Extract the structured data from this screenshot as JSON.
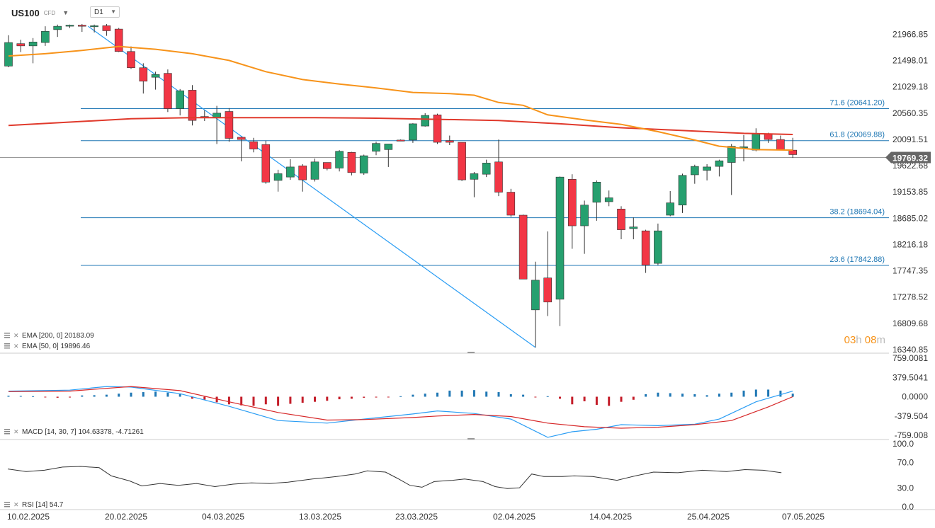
{
  "header": {
    "symbol": "US100",
    "instrument_type": "CFD",
    "timeframe": "D1",
    "symbol_dropdown_icon": "chevron-down-icon",
    "timeframe_dropdown_icon": "chevron-down-icon"
  },
  "countdown": {
    "hours": "03",
    "hours_unit": "h",
    "minutes": "08",
    "minutes_unit": "m"
  },
  "colors": {
    "bull": "#26a06f",
    "bear": "#f23645",
    "ema50": "#f7931a",
    "ema200": "#e0392b",
    "fib": "#1f77b4",
    "trend": "#2a9df4",
    "macd_line": "#2a9df4",
    "signal_line": "#d62728",
    "hist_pos": "#1f77b4",
    "hist_neg": "#c41e2a",
    "rsi": "#333333",
    "countdown": "#f7931a"
  },
  "chart_data": {
    "type": "candlestick",
    "x_labels": [
      "10.02.2025",
      "20.02.2025",
      "04.03.2025",
      "13.03.2025",
      "23.03.2025",
      "02.04.2025",
      "14.04.2025",
      "25.04.2025",
      "07.05.2025"
    ],
    "price_axis": {
      "ticks": [
        "21966.85",
        "21498.01",
        "21029.18",
        "20560.35",
        "20091.51",
        "19622.68",
        "19153.85",
        "18685.02",
        "18216.18",
        "17747.35",
        "17278.52",
        "16809.68",
        "16340.85"
      ],
      "range": [
        16340.85,
        22200
      ]
    },
    "current_price": "19769.32",
    "candles": [
      {
        "o": 21400,
        "h": 21950,
        "l": 21380,
        "c": 21820
      },
      {
        "o": 21800,
        "h": 21870,
        "l": 21650,
        "c": 21760
      },
      {
        "o": 21760,
        "h": 21900,
        "l": 21450,
        "c": 21830
      },
      {
        "o": 21820,
        "h": 22110,
        "l": 21760,
        "c": 22020
      },
      {
        "o": 22050,
        "h": 22140,
        "l": 21920,
        "c": 22110
      },
      {
        "o": 22120,
        "h": 22140,
        "l": 22080,
        "c": 22130
      },
      {
        "o": 22130,
        "h": 22150,
        "l": 22010,
        "c": 22110
      },
      {
        "o": 22120,
        "h": 22140,
        "l": 22000,
        "c": 22120
      },
      {
        "o": 22120,
        "h": 22150,
        "l": 21940,
        "c": 22030
      },
      {
        "o": 22060,
        "h": 22080,
        "l": 21650,
        "c": 21660
      },
      {
        "o": 21660,
        "h": 21750,
        "l": 21350,
        "c": 21370
      },
      {
        "o": 21370,
        "h": 21450,
        "l": 20910,
        "c": 21130
      },
      {
        "o": 21200,
        "h": 21300,
        "l": 20980,
        "c": 21250
      },
      {
        "o": 21270,
        "h": 21340,
        "l": 20580,
        "c": 20640
      },
      {
        "o": 20640,
        "h": 20990,
        "l": 20520,
        "c": 20960
      },
      {
        "o": 20970,
        "h": 21060,
        "l": 20340,
        "c": 20430
      },
      {
        "o": 20500,
        "h": 20610,
        "l": 20420,
        "c": 20490
      },
      {
        "o": 20480,
        "h": 20690,
        "l": 20010,
        "c": 20560
      },
      {
        "o": 20590,
        "h": 20650,
        "l": 20050,
        "c": 20110
      },
      {
        "o": 20130,
        "h": 20140,
        "l": 19700,
        "c": 20090
      },
      {
        "o": 20050,
        "h": 20120,
        "l": 19860,
        "c": 19920
      },
      {
        "o": 20000,
        "h": 20070,
        "l": 19300,
        "c": 19330
      },
      {
        "o": 19360,
        "h": 19550,
        "l": 19160,
        "c": 19480
      },
      {
        "o": 19420,
        "h": 19740,
        "l": 19370,
        "c": 19600
      },
      {
        "o": 19620,
        "h": 19650,
        "l": 19160,
        "c": 19370
      },
      {
        "o": 19380,
        "h": 19750,
        "l": 19340,
        "c": 19690
      },
      {
        "o": 19680,
        "h": 19680,
        "l": 19540,
        "c": 19570
      },
      {
        "o": 19580,
        "h": 19900,
        "l": 19520,
        "c": 19880
      },
      {
        "o": 19860,
        "h": 19870,
        "l": 19450,
        "c": 19500
      },
      {
        "o": 19490,
        "h": 19820,
        "l": 19460,
        "c": 19800
      },
      {
        "o": 19880,
        "h": 20050,
        "l": 19810,
        "c": 20020
      },
      {
        "o": 19910,
        "h": 20010,
        "l": 19600,
        "c": 20010
      },
      {
        "o": 20080,
        "h": 20090,
        "l": 20060,
        "c": 20070
      },
      {
        "o": 20080,
        "h": 20380,
        "l": 20030,
        "c": 20370
      },
      {
        "o": 20330,
        "h": 20560,
        "l": 20320,
        "c": 20520
      },
      {
        "o": 20530,
        "h": 20550,
        "l": 20010,
        "c": 20040
      },
      {
        "o": 20070,
        "h": 20160,
        "l": 19990,
        "c": 20040
      },
      {
        "o": 20040,
        "h": 20040,
        "l": 19350,
        "c": 19370
      },
      {
        "o": 19380,
        "h": 19510,
        "l": 19060,
        "c": 19480
      },
      {
        "o": 19470,
        "h": 19730,
        "l": 19420,
        "c": 19670
      },
      {
        "o": 19690,
        "h": 20090,
        "l": 19080,
        "c": 19150
      },
      {
        "o": 19150,
        "h": 19210,
        "l": 18710,
        "c": 18740
      },
      {
        "o": 18740,
        "h": 18750,
        "l": 17600,
        "c": 17600
      },
      {
        "o": 17050,
        "h": 17910,
        "l": 16380,
        "c": 17580
      },
      {
        "o": 17620,
        "h": 18450,
        "l": 16940,
        "c": 17190
      },
      {
        "o": 17240,
        "h": 19430,
        "l": 16760,
        "c": 19420
      },
      {
        "o": 19380,
        "h": 19470,
        "l": 18140,
        "c": 18550
      },
      {
        "o": 18550,
        "h": 19000,
        "l": 18050,
        "c": 18920
      },
      {
        "o": 18970,
        "h": 19360,
        "l": 18640,
        "c": 19330
      },
      {
        "o": 18980,
        "h": 19180,
        "l": 18900,
        "c": 19050
      },
      {
        "o": 18850,
        "h": 18900,
        "l": 18310,
        "c": 18480
      },
      {
        "o": 18500,
        "h": 18700,
        "l": 18310,
        "c": 18530
      },
      {
        "o": 18460,
        "h": 18480,
        "l": 17710,
        "c": 17850
      },
      {
        "o": 17880,
        "h": 18590,
        "l": 17850,
        "c": 18460
      },
      {
        "o": 18740,
        "h": 19170,
        "l": 18720,
        "c": 18960
      },
      {
        "o": 18920,
        "h": 19480,
        "l": 18780,
        "c": 19450
      },
      {
        "o": 19460,
        "h": 19640,
        "l": 19300,
        "c": 19610
      },
      {
        "o": 19540,
        "h": 19650,
        "l": 19360,
        "c": 19600
      },
      {
        "o": 19610,
        "h": 19730,
        "l": 19430,
        "c": 19710
      },
      {
        "o": 19680,
        "h": 20010,
        "l": 19100,
        "c": 19970
      },
      {
        "o": 19960,
        "h": 20170,
        "l": 19700,
        "c": 19960
      },
      {
        "o": 19900,
        "h": 20290,
        "l": 19880,
        "c": 20200
      },
      {
        "o": 20190,
        "h": 20210,
        "l": 20030,
        "c": 20090
      },
      {
        "o": 20090,
        "h": 20160,
        "l": 19900,
        "c": 19910
      },
      {
        "o": 19900,
        "h": 20120,
        "l": 19760,
        "c": 19820
      }
    ],
    "ema200": {
      "label": "EMA [200, 0]",
      "value": "20183.09",
      "points": [
        [
          0,
          20340
        ],
        [
          5,
          20400
        ],
        [
          10,
          20460
        ],
        [
          15,
          20480
        ],
        [
          20,
          20480
        ],
        [
          25,
          20480
        ],
        [
          30,
          20470
        ],
        [
          35,
          20450
        ],
        [
          40,
          20430
        ],
        [
          45,
          20370
        ],
        [
          50,
          20300
        ],
        [
          55,
          20250
        ],
        [
          60,
          20200
        ],
        [
          64,
          20180
        ]
      ]
    },
    "ema50": {
      "label": "EMA [50, 0]",
      "value": "19896.46",
      "points": [
        [
          0,
          21580
        ],
        [
          3,
          21620
        ],
        [
          6,
          21680
        ],
        [
          9,
          21750
        ],
        [
          12,
          21700
        ],
        [
          15,
          21620
        ],
        [
          18,
          21500
        ],
        [
          21,
          21300
        ],
        [
          24,
          21160
        ],
        [
          27,
          21080
        ],
        [
          30,
          21010
        ],
        [
          33,
          20930
        ],
        [
          36,
          20910
        ],
        [
          38,
          20880
        ],
        [
          40,
          20750
        ],
        [
          42,
          20700
        ],
        [
          44,
          20530
        ],
        [
          47,
          20440
        ],
        [
          50,
          20360
        ],
        [
          53,
          20230
        ],
        [
          56,
          20080
        ],
        [
          58,
          19970
        ],
        [
          61,
          19910
        ],
        [
          64,
          19900
        ]
      ]
    },
    "trendline": [
      [
        6.5,
        22110
      ],
      [
        43,
        16380
      ]
    ],
    "fibonacci": [
      {
        "label": "71.6",
        "value": "20641.20"
      },
      {
        "label": "61.8",
        "value": "20069.88"
      },
      {
        "label": "38.2",
        "value": "18694.04"
      },
      {
        "label": "23.6",
        "value": "17842.88"
      }
    ],
    "macd": {
      "label": "MACD [14, 30, 7]",
      "macd_value": "104.63378",
      "signal_value": "-4.71261",
      "axis_ticks": [
        "759.0081",
        "379.5041",
        "0.0000",
        "-379.504",
        "-759.008"
      ],
      "range": [
        -759.008,
        759.0081
      ],
      "histogram": [
        20,
        15,
        10,
        -10,
        -20,
        -15,
        25,
        30,
        40,
        60,
        80,
        90,
        100,
        80,
        50,
        -40,
        -60,
        -110,
        -150,
        -170,
        -180,
        -150,
        -180,
        -140,
        -120,
        -100,
        -80,
        -50,
        -40,
        -20,
        -15,
        -10,
        10,
        40,
        60,
        80,
        120,
        120,
        130,
        100,
        90,
        50,
        40,
        -10,
        10,
        -40,
        -150,
        -90,
        -160,
        -180,
        -100,
        -60,
        50,
        80,
        70,
        60,
        50,
        30,
        60,
        80,
        120,
        140,
        140,
        120,
        60
      ],
      "macd_line": [
        [
          0,
          110
        ],
        [
          5,
          130
        ],
        [
          8,
          200
        ],
        [
          10,
          190
        ],
        [
          14,
          60
        ],
        [
          18,
          -190
        ],
        [
          22,
          -470
        ],
        [
          26,
          -520
        ],
        [
          29,
          -440
        ],
        [
          33,
          -340
        ],
        [
          35,
          -280
        ],
        [
          38,
          -330
        ],
        [
          41,
          -440
        ],
        [
          44,
          -800
        ],
        [
          46,
          -690
        ],
        [
          48,
          -640
        ],
        [
          50,
          -550
        ],
        [
          53,
          -570
        ],
        [
          56,
          -540
        ],
        [
          58,
          -440
        ],
        [
          61,
          -100
        ],
        [
          64,
          110
        ]
      ],
      "signal_line": [
        [
          0,
          100
        ],
        [
          5,
          110
        ],
        [
          10,
          200
        ],
        [
          14,
          120
        ],
        [
          18,
          -100
        ],
        [
          22,
          -310
        ],
        [
          26,
          -460
        ],
        [
          29,
          -450
        ],
        [
          33,
          -410
        ],
        [
          35,
          -380
        ],
        [
          38,
          -350
        ],
        [
          41,
          -390
        ],
        [
          44,
          -520
        ],
        [
          47,
          -590
        ],
        [
          50,
          -620
        ],
        [
          53,
          -600
        ],
        [
          56,
          -550
        ],
        [
          59,
          -470
        ],
        [
          62,
          -200
        ],
        [
          64,
          0
        ]
      ]
    },
    "rsi": {
      "label": "RSI [14]",
      "value": "54.7",
      "axis_ticks": [
        "100.0",
        "70.0",
        "30.0",
        "0.0"
      ],
      "range": [
        0,
        100
      ],
      "points": [
        [
          0,
          60
        ],
        [
          3,
          56
        ],
        [
          6,
          58
        ],
        [
          9,
          63
        ],
        [
          12,
          64
        ],
        [
          15,
          62
        ],
        [
          17,
          49
        ],
        [
          20,
          41
        ],
        [
          22,
          33
        ],
        [
          25,
          37
        ],
        [
          28,
          34
        ],
        [
          31,
          37
        ],
        [
          34,
          32
        ],
        [
          37,
          36
        ],
        [
          40,
          38
        ],
        [
          43,
          37
        ],
        [
          46,
          39
        ],
        [
          50,
          44
        ],
        [
          52,
          46
        ],
        [
          54,
          48
        ],
        [
          57,
          52
        ],
        [
          59,
          57
        ],
        [
          62,
          55
        ],
        [
          64,
          45
        ],
        [
          66,
          34
        ],
        [
          68,
          31
        ],
        [
          70,
          40
        ],
        [
          73,
          42
        ],
        [
          75,
          44
        ],
        [
          78,
          40
        ],
        [
          80,
          32
        ],
        [
          82,
          29
        ],
        [
          84,
          30
        ],
        [
          86,
          52
        ],
        [
          88,
          48
        ],
        [
          91,
          48
        ],
        [
          93,
          49
        ],
        [
          96,
          48
        ],
        [
          100,
          42
        ],
        [
          103,
          49
        ],
        [
          106,
          55
        ],
        [
          110,
          54
        ],
        [
          114,
          58
        ],
        [
          118,
          56
        ],
        [
          121,
          59
        ],
        [
          124,
          58
        ],
        [
          127,
          54
        ]
      ]
    }
  }
}
